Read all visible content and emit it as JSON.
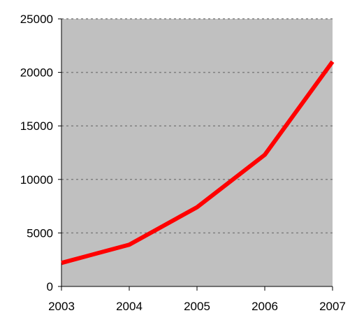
{
  "chart_data": {
    "type": "line",
    "title": "",
    "xlabel": "",
    "ylabel": "",
    "x": [
      "2003",
      "2004",
      "2005",
      "2006",
      "2007"
    ],
    "series": [
      {
        "values": [
          2200,
          3900,
          7400,
          12300,
          21000
        ],
        "color": "#ff0000"
      }
    ],
    "ylim": [
      0,
      25000
    ],
    "yticks": [
      "0",
      "5000",
      "10000",
      "15000",
      "20000",
      "25000"
    ],
    "grid": true,
    "grid_style": "dashed",
    "plot_background": "#c0c0c0",
    "legend": "none"
  }
}
